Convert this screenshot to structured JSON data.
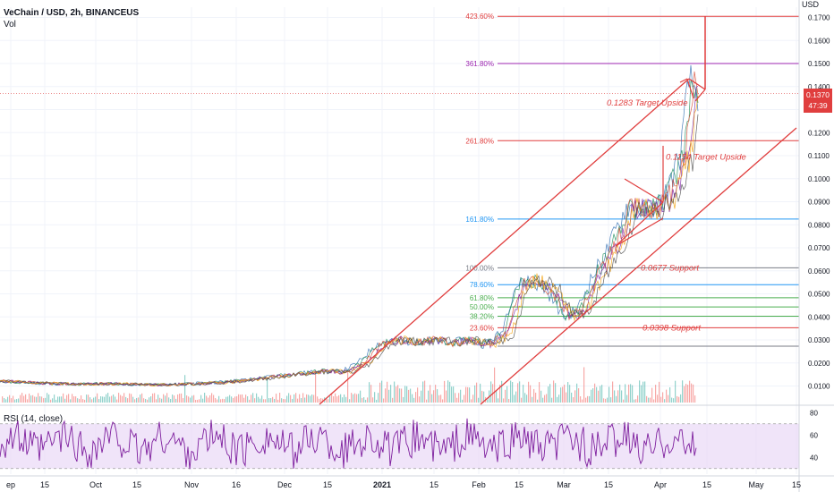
{
  "header": {
    "title": "VeChain / USD, 2h, BINANCEUS",
    "volume_label": "Vol",
    "rsi_label": "RSI (14, close)",
    "currency": "USD",
    "last_price": "0.1370",
    "countdown": "47:39"
  },
  "colors": {
    "channel": "#e03e3e",
    "fib_red": "#e03e3e",
    "fib_purple": "#9c27b0",
    "fib_blue": "#2196f3",
    "fib_green": "#4caf50",
    "fib_gray": "#787b86",
    "rsi_line": "#7e1f9e",
    "rsi_band": "#e9d9f7",
    "volume": "#26a69a"
  },
  "chart_data": {
    "type": "line",
    "price_axis": {
      "ticks": [
        "0.1700",
        "0.1600",
        "0.1500",
        "0.1400",
        "0.1300",
        "0.1200",
        "0.1100",
        "0.1000",
        "0.0900",
        "0.0800",
        "0.0700",
        "0.0600",
        "0.0500",
        "0.0400",
        "0.0300",
        "0.0200",
        "0.0100"
      ],
      "range": [
        0.0,
        0.175
      ]
    },
    "time_axis": {
      "ticks": [
        "ep",
        "15",
        "Oct",
        "15",
        "Nov",
        "16",
        "Dec",
        "15",
        "2021",
        "15",
        "Feb",
        "15",
        "Mar",
        "15",
        "Apr",
        "15",
        "May",
        "15"
      ],
      "ticks_month_or_year": [
        "ep",
        "Oct",
        "Nov",
        "Dec",
        "2021",
        "Feb",
        "Mar",
        "Apr",
        "May"
      ]
    },
    "rsi_axis": {
      "ticks": [
        "80",
        "60",
        "40"
      ],
      "range": [
        25,
        85
      ],
      "band": [
        30,
        70
      ]
    },
    "fib_levels": [
      {
        "label": "423.60%",
        "price": 0.1705,
        "color": "fib_red"
      },
      {
        "label": "361.80%",
        "price": 0.15,
        "color": "fib_purple"
      },
      {
        "label": "261.80%",
        "price": 0.1165,
        "color": "fib_red"
      },
      {
        "label": "161.80%",
        "price": 0.0825,
        "color": "fib_blue"
      },
      {
        "label": "100.00%",
        "price": 0.0613,
        "color": "fib_gray"
      },
      {
        "label": "78.60%",
        "price": 0.054,
        "color": "fib_blue"
      },
      {
        "label": "61.80%",
        "price": 0.0483,
        "color": "fib_green"
      },
      {
        "label": "50.00%",
        "price": 0.0443,
        "color": "fib_green"
      },
      {
        "label": "38.20%",
        "price": 0.0403,
        "color": "fib_green"
      },
      {
        "label": "23.60%",
        "price": 0.0353,
        "color": "fib_red"
      },
      {
        "label": "",
        "price": 0.0273,
        "color": "fib_gray"
      }
    ],
    "annotations": [
      {
        "text": "0.1283 Target Upside",
        "price": 0.133
      },
      {
        "text": "0.1154 Target Upside",
        "price": 0.1095
      },
      {
        "text": "0.0677 Support",
        "price": 0.0613
      },
      {
        "text": "0.0398 Support",
        "price": 0.0353
      }
    ],
    "series": [
      {
        "name": "",
        "price": [
          0.012,
          0.0115,
          0.011,
          0.0118,
          0.0112,
          0.0108,
          0.0105,
          0.011,
          0.0113,
          0.0116,
          0.012,
          0.013,
          0.0165,
          0.017,
          0.0175,
          0.018,
          0.02,
          0.023,
          0.03,
          0.032,
          0.028,
          0.031,
          0.029,
          0.03,
          0.038,
          0.057,
          0.054,
          0.043,
          0.041,
          0.045,
          0.056,
          0.062,
          0.068,
          0.082,
          0.09,
          0.094,
          0.087,
          0.09,
          0.095,
          0.11,
          0.13,
          0.143,
          0.137
        ]
      }
    ]
  }
}
